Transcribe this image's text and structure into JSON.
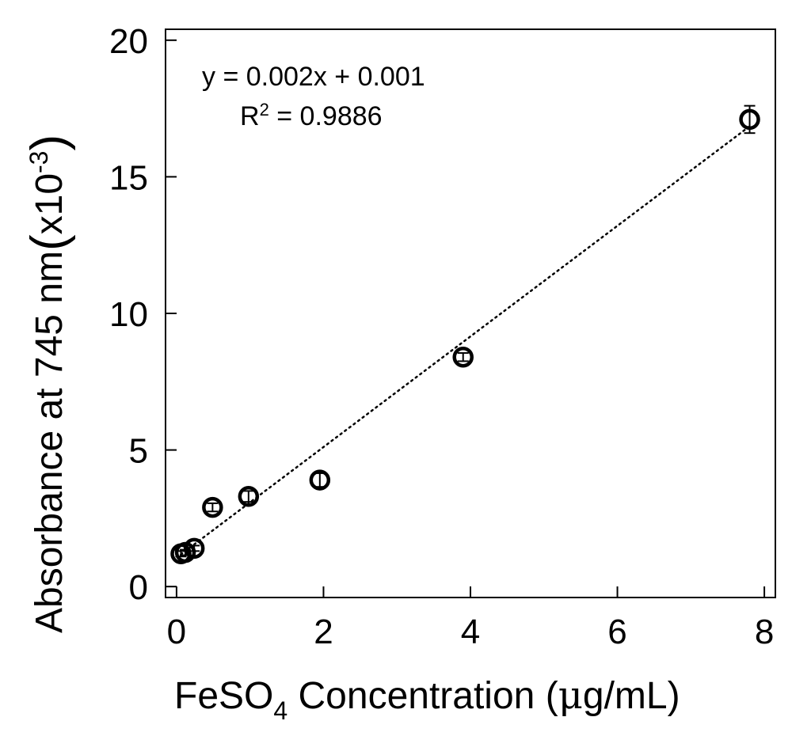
{
  "chart_data": {
    "type": "scatter",
    "xlabel": {
      "main": "FeSO",
      "sub": "4",
      "rest": " Concentration (",
      "greek": "μ",
      "unit": "g/mL)"
    },
    "ylabel": {
      "main": "Absorbance at 745 nm",
      "paren_open": "(",
      "mult": "x10",
      "exp": "-3",
      "paren_close": ")"
    },
    "xlim": [
      -0.15,
      8.15
    ],
    "ylim": [
      -0.4,
      20.4
    ],
    "xticks": [
      0,
      2,
      4,
      6,
      8
    ],
    "yticks": [
      0,
      5,
      10,
      15,
      20
    ],
    "xtick_labels": [
      "0",
      "2",
      "4",
      "6",
      "8"
    ],
    "ytick_labels": [
      "0",
      "5",
      "10",
      "15",
      "20"
    ],
    "grid": false,
    "points": [
      {
        "x": 0.06,
        "y": 1.2,
        "err": 0.1
      },
      {
        "x": 0.12,
        "y": 1.25,
        "err": 0.1
      },
      {
        "x": 0.24,
        "y": 1.4,
        "err": 0.1
      },
      {
        "x": 0.49,
        "y": 2.9,
        "err": 0.15
      },
      {
        "x": 0.98,
        "y": 3.3,
        "err": 0.2
      },
      {
        "x": 1.95,
        "y": 3.9,
        "err": 0.25
      },
      {
        "x": 3.9,
        "y": 8.4,
        "err": 0.15
      },
      {
        "x": 7.8,
        "y": 17.1,
        "err": 0.5
      }
    ],
    "fit": {
      "slope": 0.002,
      "intercept": 0.001,
      "x_range": [
        0.06,
        7.8
      ],
      "line_range_y": [
        1.18,
        16.85
      ]
    },
    "annotations": {
      "equation": "y = 0.002x + 0.001",
      "r2_prefix": "R",
      "r2_exp": "2",
      "r2_value": " = 0.9886"
    }
  }
}
